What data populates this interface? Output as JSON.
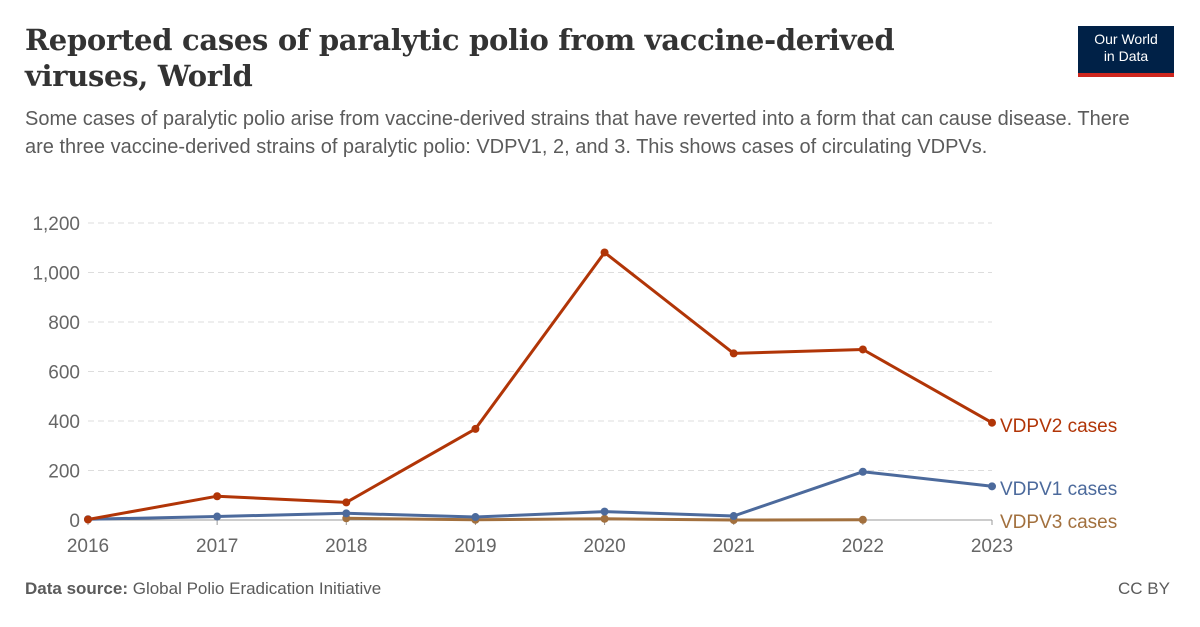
{
  "header": {
    "title": "Reported cases of paralytic polio from vaccine-derived viruses, World",
    "subtitle": "Some cases of paralytic polio arise from vaccine-derived strains that have reverted into a form that can cause disease. There are three vaccine-derived strains of paralytic polio: VDPV1, 2, and 3. This shows cases of circulating VDPVs."
  },
  "logo": {
    "line1": "Our World",
    "line2": "in Data",
    "bg_color": "#002147",
    "accent_color": "#ce261e"
  },
  "footer": {
    "source_label": "Data source:",
    "source_text": "Global Polio Eradication Initiative",
    "license": "CC BY"
  },
  "chart_data": {
    "type": "line",
    "title": "Reported cases of paralytic polio from vaccine-derived viruses, World",
    "xlabel": "",
    "ylabel": "",
    "x": [
      2016,
      2017,
      2018,
      2019,
      2020,
      2021,
      2022,
      2023
    ],
    "x_tick_labels": [
      "2016",
      "2017",
      "2018",
      "2019",
      "2020",
      "2021",
      "2022",
      "2023"
    ],
    "ylim": [
      0,
      1200
    ],
    "y_ticks": [
      0,
      200,
      400,
      600,
      800,
      1000,
      1200
    ],
    "y_tick_labels": [
      "0",
      "200",
      "400",
      "600",
      "800",
      "1,000",
      "1,200"
    ],
    "grid": true,
    "legend": "right (inline labels at line ends)",
    "series": [
      {
        "name": "VDPV2 cases",
        "color": "#b13507",
        "x": [
          2016,
          2017,
          2018,
          2019,
          2020,
          2021,
          2022,
          2023
        ],
        "values": [
          2,
          96,
          71,
          368,
          1081,
          673,
          689,
          393
        ]
      },
      {
        "name": "VDPV1 cases",
        "color": "#4c6a9c",
        "x": [
          2016,
          2017,
          2018,
          2019,
          2020,
          2021,
          2022,
          2023
        ],
        "values": [
          3,
          14,
          27,
          12,
          34,
          16,
          195,
          136
        ]
      },
      {
        "name": "VDPV3 cases",
        "color": "#a2703e",
        "x": [
          2018,
          2019,
          2020,
          2021,
          2022
        ],
        "values": [
          7,
          1,
          5,
          0,
          1
        ]
      }
    ]
  }
}
